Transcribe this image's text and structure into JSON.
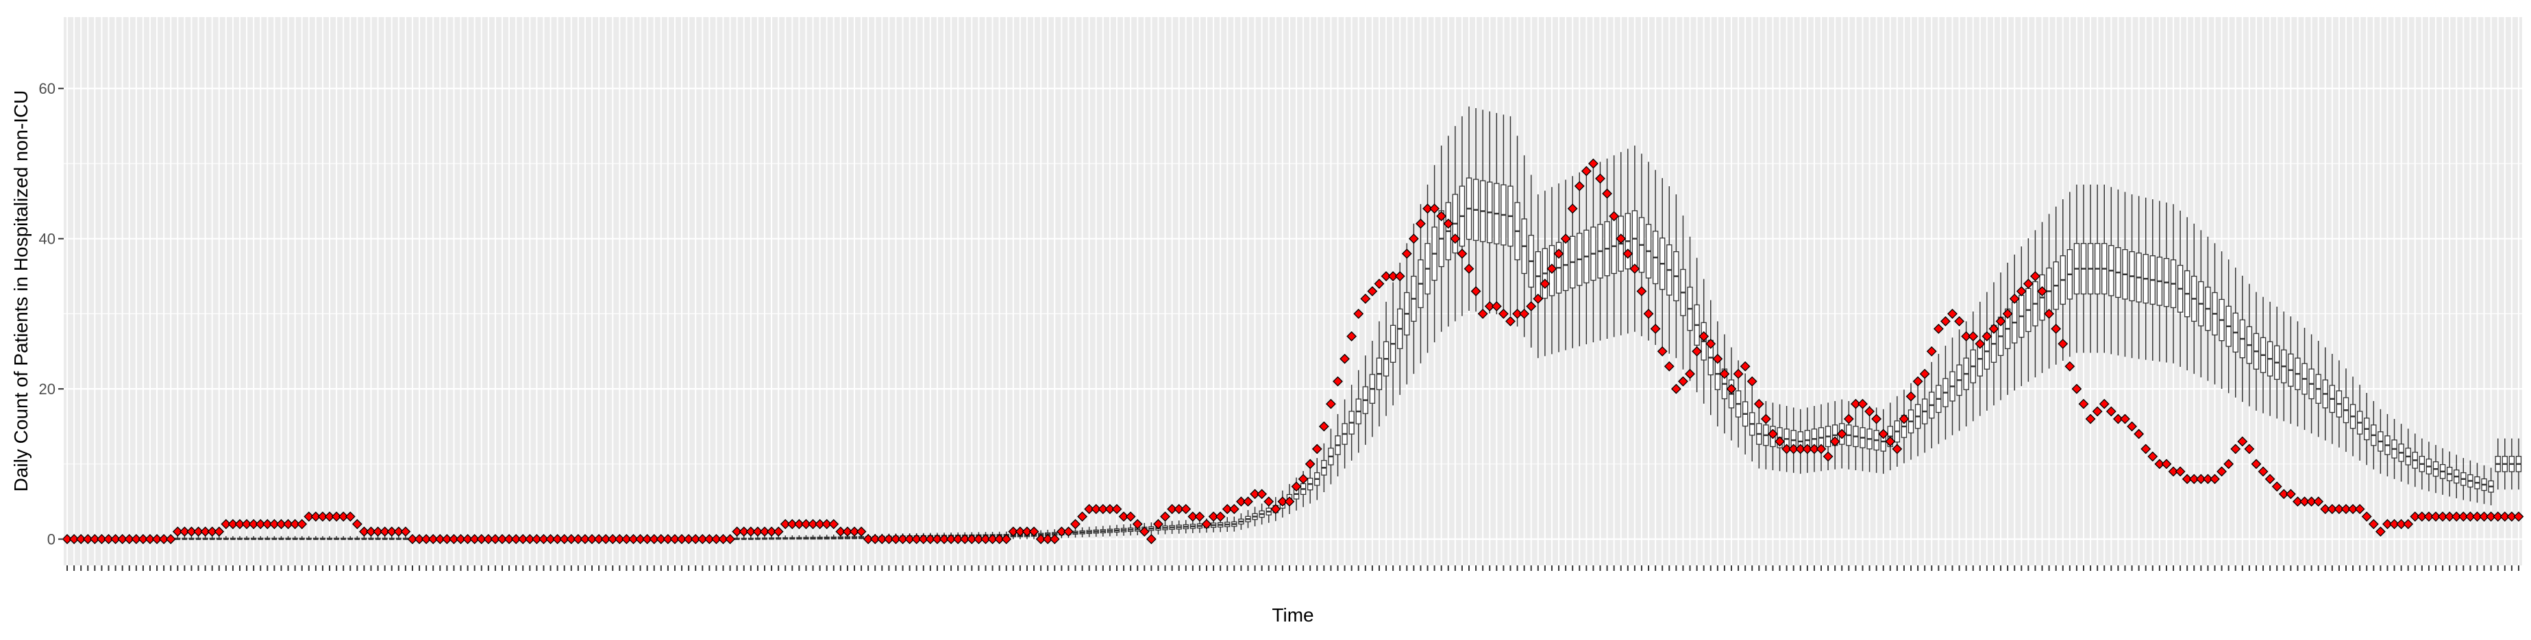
{
  "chart_data": {
    "type": "boxplot-with-points",
    "title": "",
    "xlabel": "Time",
    "ylabel": "Daily Count of Patients in Hospitalized non-ICU",
    "ylim": [
      -3.5,
      69.5
    ],
    "y_ticks": [
      0,
      20,
      40,
      60
    ],
    "n_days": 356,
    "grid": true,
    "legend": "none",
    "colors": {
      "panel": "#ebebeb",
      "grid": "#ffffff",
      "box": "#333333",
      "point_fill": "#ff0000",
      "point_stroke": "#000000"
    },
    "series": [
      {
        "role": "observed (points)",
        "key_x": [
          1,
          15,
          18,
          22,
          26,
          30,
          34,
          38,
          42,
          44,
          48,
          52,
          60,
          70,
          80,
          90,
          96,
          100,
          103,
          106,
          110,
          114,
          118,
          124,
          128,
          132,
          136,
          140,
          142,
          144,
          146,
          148,
          150,
          152,
          154,
          156,
          158,
          160,
          162,
          164,
          166,
          168,
          170,
          172,
          174,
          176,
          178,
          180,
          182,
          184,
          186,
          188,
          190,
          192,
          194,
          196,
          198,
          200,
          202,
          204,
          206,
          208,
          210,
          212,
          214,
          216,
          218,
          220,
          222,
          224,
          226,
          228,
          230,
          232,
          234,
          236,
          238,
          240,
          242,
          244,
          246,
          248,
          250,
          252,
          254,
          256,
          258,
          260,
          262,
          264,
          266,
          268,
          270,
          272,
          274,
          276,
          278,
          280,
          282,
          284,
          286,
          288,
          290,
          292,
          294,
          296,
          298,
          300,
          302,
          304,
          306,
          308,
          310,
          312,
          314,
          316,
          318,
          320,
          322,
          324,
          326,
          328,
          330,
          332,
          334,
          336,
          338,
          340,
          342,
          344,
          346,
          348,
          350,
          352,
          354,
          356
        ],
        "key_y": [
          0,
          0,
          1,
          1,
          2,
          2,
          2,
          3,
          3,
          1,
          1,
          0,
          0,
          0,
          0,
          0,
          0,
          1,
          1,
          2,
          2,
          1,
          0,
          0,
          0,
          0,
          0,
          1,
          0,
          0,
          1,
          3,
          4,
          4,
          3,
          2,
          0,
          3,
          4,
          3,
          2,
          3,
          4,
          5,
          6,
          4,
          5,
          8,
          12,
          18,
          24,
          30,
          33,
          35,
          35,
          40,
          44,
          43,
          40,
          36,
          30,
          31,
          29,
          30,
          32,
          36,
          40,
          47,
          50,
          46,
          40,
          36,
          30,
          25,
          20,
          22,
          27,
          24,
          20,
          23,
          18,
          14,
          12,
          12,
          12,
          11,
          14,
          18,
          17,
          14,
          12,
          19,
          22,
          28,
          30,
          27,
          26,
          28,
          30,
          33,
          35,
          30,
          26,
          20,
          16,
          18,
          16,
          15,
          12,
          10,
          9,
          8,
          8,
          8,
          10,
          13,
          10,
          8,
          6,
          5,
          5,
          4,
          4,
          4,
          3,
          1,
          2,
          2,
          3,
          3,
          3,
          3,
          3,
          3,
          3,
          3
        ]
      },
      {
        "role": "model median (box centers)",
        "key_x": [
          1,
          60,
          100,
          140,
          170,
          176,
          182,
          190,
          196,
          200,
          204,
          210,
          214,
          222,
          228,
          234,
          240,
          246,
          252,
          258,
          264,
          270,
          276,
          282,
          288,
          292,
          296,
          300,
          306,
          312,
          318,
          324,
          330,
          336,
          342,
          348,
          352,
          353,
          356
        ],
        "key_y": [
          0,
          0,
          0,
          0.5,
          2,
          4,
          8,
          20,
          32,
          40,
          44,
          43,
          35,
          38,
          40,
          35,
          22,
          14,
          13,
          14,
          13,
          17,
          22,
          28,
          33,
          36,
          36,
          35,
          34,
          30,
          25,
          22,
          18,
          13,
          10,
          8,
          7,
          10,
          10
        ]
      }
    ]
  }
}
